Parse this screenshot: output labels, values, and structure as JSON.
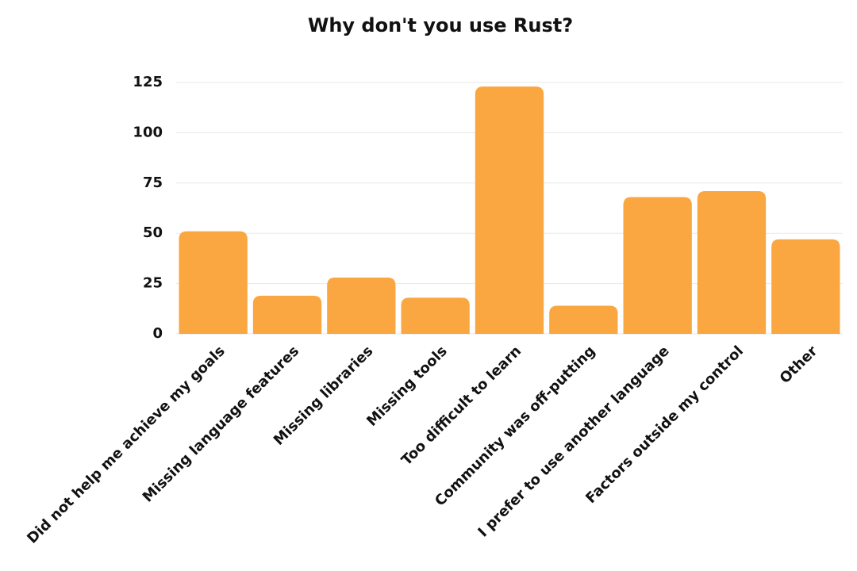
{
  "chart_data": {
    "type": "bar",
    "title": "Why don't you use Rust?",
    "categories": [
      "Did not help me achieve my goals",
      "Missing language features",
      "Missing libraries",
      "Missing tools",
      "Too difficult to learn",
      "Community was off-putting",
      "I prefer to use another language",
      "Factors outside my control",
      "Other"
    ],
    "values": [
      51,
      19,
      28,
      18,
      123,
      14,
      68,
      71,
      47
    ],
    "color": "#fba741",
    "ylim": [
      0,
      125
    ],
    "yticks": [
      0,
      25,
      50,
      75,
      100,
      125
    ],
    "grid": true
  }
}
